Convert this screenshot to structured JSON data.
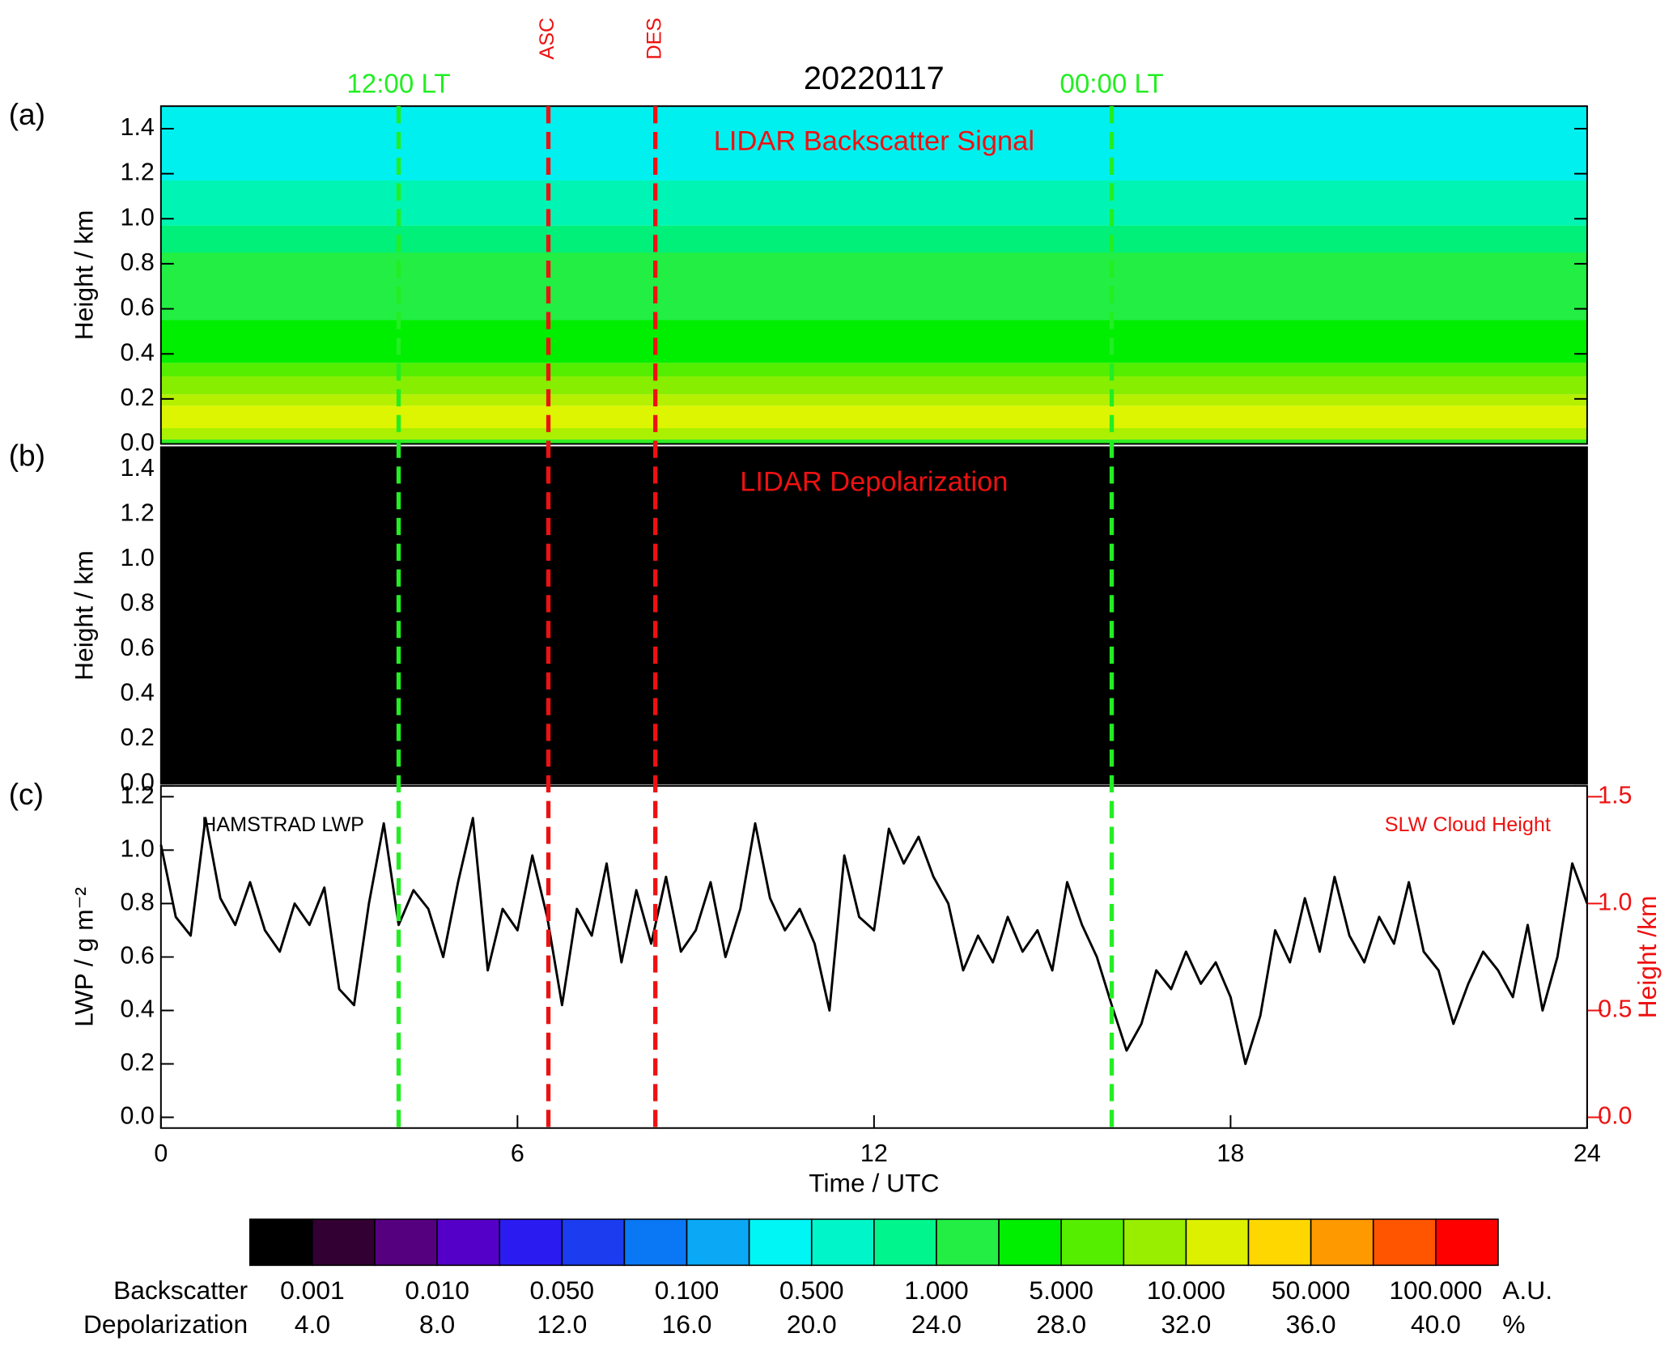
{
  "title": "20220117",
  "markers": [
    {
      "x": 4.0,
      "label": "12:00 LT",
      "color": "#22ee22"
    },
    {
      "x": 6.52,
      "label": "ASC",
      "color": "#ee1111"
    },
    {
      "x": 8.32,
      "label": "DES",
      "color": "#ee1111"
    },
    {
      "x": 16.0,
      "label": "00:00 LT",
      "color": "#22ee22"
    }
  ],
  "chart_data": [
    {
      "type": "contour",
      "panel_label": "(a)",
      "annotation": "LIDAR Backscatter Signal",
      "ylabel": "Height / km",
      "xlim": [
        0,
        24
      ],
      "ylim": [
        0,
        1.5
      ],
      "yticks": [
        {
          "value": 0,
          "label": "0.0"
        },
        0.2,
        0.4,
        0.6,
        0.8,
        {
          "value": 1,
          "label": "1.0"
        },
        1.2,
        1.4
      ],
      "bands": [
        {
          "from": 0,
          "to": 0.02,
          "color": "#33ee22"
        },
        {
          "from": 0.02,
          "to": 0.07,
          "color": "#aaf000"
        },
        {
          "from": 0.07,
          "to": 0.17,
          "color": "#ddf500"
        },
        {
          "from": 0.17,
          "to": 0.22,
          "color": "#b5f000"
        },
        {
          "from": 0.22,
          "to": 0.3,
          "color": "#88ee00"
        },
        {
          "from": 0.3,
          "to": 0.36,
          "color": "#55ee00"
        },
        {
          "from": 0.36,
          "to": 0.55,
          "color": "#00ee00"
        },
        {
          "from": 0.55,
          "to": 0.85,
          "color": "#22ee44"
        },
        {
          "from": 0.85,
          "to": 0.97,
          "color": "#00f07a"
        },
        {
          "from": 0.97,
          "to": 1.17,
          "color": "#00f5b4"
        },
        {
          "from": 1.17,
          "to": 1.5,
          "color": "#00f0f0"
        }
      ]
    },
    {
      "type": "contour",
      "panel_label": "(b)",
      "annotation": "LIDAR Depolarization",
      "ylabel": "Height / km",
      "xlim": [
        0,
        24
      ],
      "ylim": [
        0,
        1.5
      ],
      "yticks": [
        {
          "value": 0,
          "label": "0.0"
        },
        0.2,
        0.4,
        0.6,
        0.8,
        {
          "value": 1,
          "label": "1.0"
        },
        1.2,
        1.4
      ],
      "bands": [
        {
          "from": 0,
          "to": 1.5,
          "color": "#000000"
        }
      ]
    },
    {
      "type": "line",
      "panel_label": "(c)",
      "xlabel": "Time / UTC",
      "ylabel": "LWP / g m⁻²",
      "y2label": "Height /km",
      "annotation": "SLW Cloud Height",
      "y2color": "#ee1111",
      "xlim": [
        0,
        24
      ],
      "xticks": [
        0,
        6,
        12,
        18,
        24
      ],
      "ylim": [
        -0.04,
        1.24
      ],
      "yticks": [
        {
          "value": 0,
          "label": "0.0"
        },
        0.2,
        0.4,
        0.6,
        0.8,
        {
          "value": 1,
          "label": "1.0"
        },
        1.2
      ],
      "y2lim": [
        -0.05,
        1.55
      ],
      "y2ticks": [
        {
          "value": 0,
          "label": "0.0"
        },
        0.5,
        {
          "value": 1,
          "label": "1.0"
        },
        1.5
      ],
      "series": [
        {
          "name": "HAMSTRAD LWP",
          "color": "#000000",
          "x": [
            0,
            0.25,
            0.5,
            0.75,
            1,
            1.25,
            1.5,
            1.75,
            2,
            2.25,
            2.5,
            2.75,
            3,
            3.25,
            3.5,
            3.75,
            4,
            4.25,
            4.5,
            4.75,
            5,
            5.25,
            5.5,
            5.75,
            6,
            6.25,
            6.5,
            6.75,
            7,
            7.25,
            7.5,
            7.75,
            8,
            8.25,
            8.5,
            8.75,
            9,
            9.25,
            9.5,
            9.75,
            10,
            10.25,
            10.5,
            10.75,
            11,
            11.25,
            11.5,
            11.75,
            12,
            12.25,
            12.5,
            12.75,
            13,
            13.25,
            13.5,
            13.75,
            14,
            14.25,
            14.5,
            14.75,
            15,
            15.25,
            15.5,
            15.75,
            16,
            16.25,
            16.5,
            16.75,
            17,
            17.25,
            17.5,
            17.75,
            18,
            18.25,
            18.5,
            18.75,
            19,
            19.25,
            19.5,
            19.75,
            20,
            20.25,
            20.5,
            20.75,
            21,
            21.25,
            21.5,
            21.75,
            22,
            22.25,
            22.5,
            22.75,
            23,
            23.25,
            23.5,
            23.75,
            24
          ],
          "values": [
            1.02,
            0.75,
            0.68,
            1.12,
            0.82,
            0.72,
            0.88,
            0.7,
            0.62,
            0.8,
            0.72,
            0.86,
            0.48,
            0.42,
            0.8,
            1.1,
            0.72,
            0.85,
            0.78,
            0.6,
            0.88,
            1.12,
            0.55,
            0.78,
            0.7,
            0.98,
            0.75,
            0.42,
            0.78,
            0.68,
            0.95,
            0.58,
            0.85,
            0.65,
            0.9,
            0.62,
            0.7,
            0.88,
            0.6,
            0.78,
            1.1,
            0.82,
            0.7,
            0.78,
            0.65,
            0.4,
            0.98,
            0.75,
            0.7,
            1.08,
            0.95,
            1.05,
            0.9,
            0.8,
            0.55,
            0.68,
            0.58,
            0.75,
            0.62,
            0.7,
            0.55,
            0.88,
            0.72,
            0.6,
            0.42,
            0.25,
            0.35,
            0.55,
            0.48,
            0.62,
            0.5,
            0.58,
            0.45,
            0.2,
            0.38,
            0.7,
            0.58,
            0.82,
            0.62,
            0.9,
            0.68,
            0.58,
            0.75,
            0.65,
            0.88,
            0.62,
            0.55,
            0.35,
            0.5,
            0.62,
            0.55,
            0.45,
            0.72,
            0.4,
            0.6,
            0.95,
            0.8
          ]
        }
      ]
    }
  ],
  "colorbar": {
    "colors": [
      "#000000",
      "#330033",
      "#55007f",
      "#5500c8",
      "#2a1cf0",
      "#1c3cf0",
      "#0a78f5",
      "#0aa8f5",
      "#00f5f5",
      "#00f5c8",
      "#00f58c",
      "#22ee44",
      "#00ee00",
      "#55ee00",
      "#99ee00",
      "#ddf000",
      "#ffd700",
      "#ff9900",
      "#ff5500",
      "#ff0000"
    ],
    "rows": [
      {
        "name": "Backscatter",
        "labels": [
          "0.001",
          "0.010",
          "0.050",
          "0.100",
          "0.500",
          "1.000",
          "5.000",
          "10.000",
          "50.000",
          "100.000"
        ],
        "unit": "A.U."
      },
      {
        "name": "Depolarization",
        "labels": [
          "4.0",
          "8.0",
          "12.0",
          "16.0",
          "20.0",
          "24.0",
          "28.0",
          "32.0",
          "36.0",
          "40.0"
        ],
        "unit": "%"
      }
    ]
  }
}
